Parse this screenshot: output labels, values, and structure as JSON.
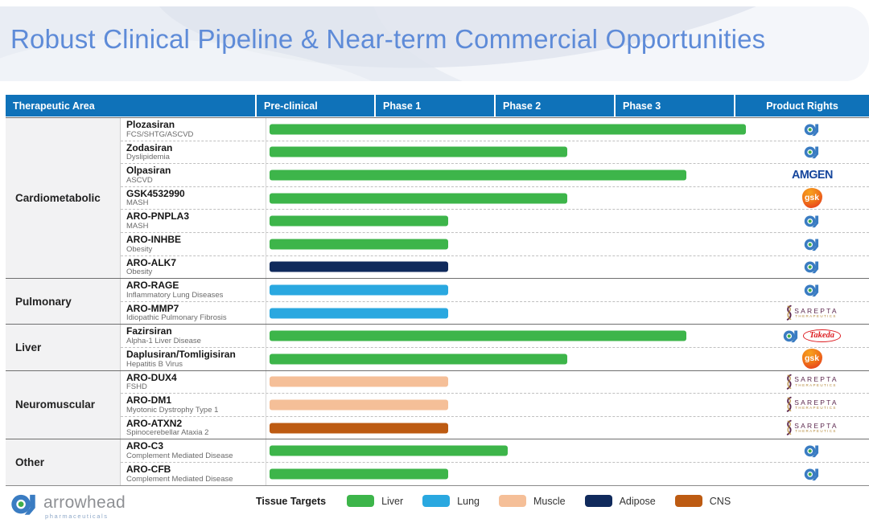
{
  "title": "Robust Clinical Pipeline & Near-term Commercial Opportunities",
  "table": {
    "headers": [
      "Therapeutic Area",
      "Pre-clinical",
      "Phase 1",
      "Phase 2",
      "Phase 3",
      "Product Rights"
    ]
  },
  "chart_data": {
    "type": "bar",
    "title": "Robust Clinical Pipeline & Near-term Commercial Opportunities",
    "phases": [
      "Pre-clinical",
      "Phase 1",
      "Phase 2",
      "Phase 3"
    ],
    "stage_scale": "stage_reached: 0=start, 1=end Pre-clinical, 2=end Phase 1, 3=end Phase 2, 4=end Phase 3",
    "stage_range": [
      0,
      4
    ],
    "groups": [
      {
        "area": "Cardiometabolic",
        "programs": [
          {
            "name": "Plozasiran",
            "indication": "FCS/SHTG/ASCVD",
            "tissue": "Liver",
            "stage_reached": 4.0,
            "rights": [
              "arrowhead"
            ]
          },
          {
            "name": "Zodasiran",
            "indication": "Dyslipidemia",
            "tissue": "Liver",
            "stage_reached": 2.5,
            "rights": [
              "arrowhead"
            ]
          },
          {
            "name": "Olpasiran",
            "indication": "ASCVD",
            "tissue": "Liver",
            "stage_reached": 3.5,
            "rights": [
              "amgen"
            ]
          },
          {
            "name": "GSK4532990",
            "indication": "MASH",
            "tissue": "Liver",
            "stage_reached": 2.5,
            "rights": [
              "gsk"
            ]
          },
          {
            "name": "ARO-PNPLA3",
            "indication": "MASH",
            "tissue": "Liver",
            "stage_reached": 1.5,
            "rights": [
              "arrowhead"
            ]
          },
          {
            "name": "ARO-INHBE",
            "indication": "Obesity",
            "tissue": "Liver",
            "stage_reached": 1.5,
            "rights": [
              "arrowhead"
            ]
          },
          {
            "name": "ARO-ALK7",
            "indication": "Obesity",
            "tissue": "Adipose",
            "stage_reached": 1.5,
            "rights": [
              "arrowhead"
            ]
          }
        ]
      },
      {
        "area": "Pulmonary",
        "programs": [
          {
            "name": "ARO-RAGE",
            "indication": "Inflammatory Lung Diseases",
            "tissue": "Lung",
            "stage_reached": 1.5,
            "rights": [
              "arrowhead"
            ]
          },
          {
            "name": "ARO-MMP7",
            "indication": "Idiopathic Pulmonary Fibrosis",
            "tissue": "Lung",
            "stage_reached": 1.5,
            "rights": [
              "sarepta"
            ]
          }
        ]
      },
      {
        "area": "Liver",
        "programs": [
          {
            "name": "Fazirsiran",
            "indication": "Alpha-1 Liver Disease",
            "tissue": "Liver",
            "stage_reached": 3.5,
            "rights": [
              "arrowhead",
              "takeda"
            ]
          },
          {
            "name": "Daplusiran/Tomligisiran",
            "indication": "Hepatitis B Virus",
            "tissue": "Liver",
            "stage_reached": 2.5,
            "rights": [
              "gsk"
            ]
          }
        ]
      },
      {
        "area": "Neuromuscular",
        "programs": [
          {
            "name": "ARO-DUX4",
            "indication": "FSHD",
            "tissue": "Muscle",
            "stage_reached": 1.5,
            "rights": [
              "sarepta"
            ]
          },
          {
            "name": "ARO-DM1",
            "indication": "Myotonic Dystrophy Type 1",
            "tissue": "Muscle",
            "stage_reached": 1.5,
            "rights": [
              "sarepta"
            ]
          },
          {
            "name": "ARO-ATXN2",
            "indication": "Spinocerebellar Ataxia 2",
            "tissue": "CNS",
            "stage_reached": 1.5,
            "rights": [
              "sarepta"
            ]
          }
        ]
      },
      {
        "area": "Other",
        "programs": [
          {
            "name": "ARO-C3",
            "indication": "Complement Mediated Disease",
            "tissue": "Liver",
            "stage_reached": 2.0,
            "rights": [
              "arrowhead"
            ]
          },
          {
            "name": "ARO-CFB",
            "indication": "Complement Mediated Disease",
            "tissue": "Liver",
            "stage_reached": 1.5,
            "rights": [
              "arrowhead"
            ]
          }
        ]
      }
    ]
  },
  "legend": {
    "label": "Tissue Targets",
    "items": [
      {
        "name": "Liver",
        "color": "#3DB54A"
      },
      {
        "name": "Lung",
        "color": "#2AA8E0"
      },
      {
        "name": "Muscle",
        "color": "#F5BF98"
      },
      {
        "name": "Adipose",
        "color": "#102A5C"
      },
      {
        "name": "CNS",
        "color": "#BD5B12"
      }
    ]
  },
  "logos": {
    "amgen_text": "AMGEN",
    "gsk_text": "gsk",
    "sarepta_text": "SAREPTA",
    "sarepta_sub": "THERAPEUTICS",
    "takeda_text": "Takeda"
  },
  "footer": {
    "brand": "arrowhead",
    "brand_sub": "pharmaceuticals"
  },
  "colors": {
    "header_bg": "#0F72B9",
    "title_text": "#5E8BD8",
    "banner_bg": "#E9EDF4",
    "arrowhead_blue": "#3A7CC2",
    "arrowhead_green": "#3FAE49",
    "amgen_blue": "#15459C",
    "takeda_red": "#DD1D21",
    "sarepta_purple": "#5E2A50",
    "sarepta_gold": "#B58A3C"
  }
}
